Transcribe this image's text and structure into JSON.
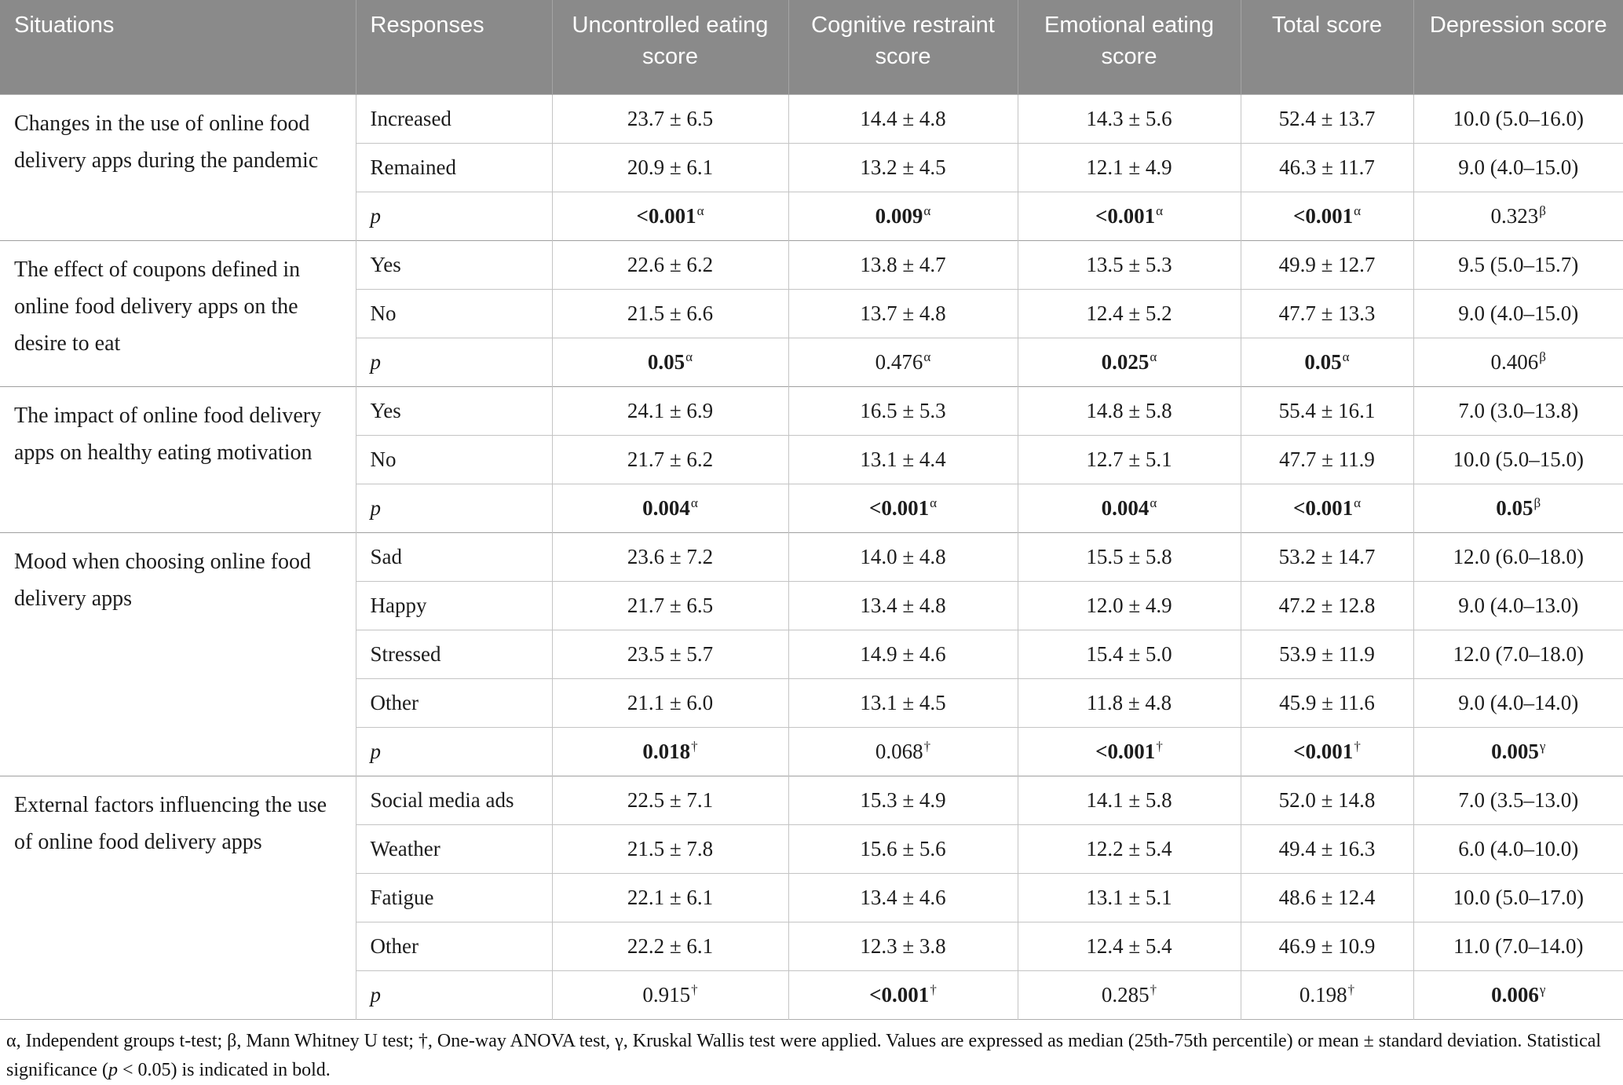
{
  "table": {
    "columns": [
      "Situations",
      "Responses",
      "Uncontrolled eating score",
      "Cognitive restraint score",
      "Emotional eating score",
      "Total score",
      "Depression score"
    ],
    "sections": [
      {
        "situation": "Changes in the use of online food delivery apps during the pandemic",
        "rows": [
          {
            "response": "Increased",
            "p_row": false,
            "cells": [
              "23.7 ± 6.5",
              "14.4 ± 4.8",
              "14.3 ± 5.6",
              "52.4 ± 13.7",
              "10.0 (5.0–16.0)"
            ]
          },
          {
            "response": "Remained",
            "p_row": false,
            "cells": [
              "20.9 ± 6.1",
              "13.2 ± 4.5",
              "12.1 ± 4.9",
              "46.3 ± 11.7",
              "9.0 (4.0–15.0)"
            ]
          },
          {
            "response": "p",
            "p_row": true,
            "cells": [
              {
                "v": "<0.001",
                "sup": "α",
                "b": true
              },
              {
                "v": "0.009",
                "sup": "α",
                "b": true
              },
              {
                "v": "<0.001",
                "sup": "α",
                "b": true
              },
              {
                "v": "<0.001",
                "sup": "α",
                "b": true
              },
              {
                "v": "0.323",
                "sup": "β",
                "b": false
              }
            ]
          }
        ]
      },
      {
        "situation": "The effect of coupons defined in online food delivery apps on the desire to eat",
        "rows": [
          {
            "response": "Yes",
            "p_row": false,
            "cells": [
              "22.6 ± 6.2",
              "13.8 ± 4.7",
              "13.5 ± 5.3",
              "49.9 ± 12.7",
              "9.5 (5.0–15.7)"
            ]
          },
          {
            "response": "No",
            "p_row": false,
            "cells": [
              "21.5 ± 6.6",
              "13.7 ± 4.8",
              "12.4 ± 5.2",
              "47.7 ± 13.3",
              "9.0 (4.0–15.0)"
            ]
          },
          {
            "response": "p",
            "p_row": true,
            "cells": [
              {
                "v": "0.05",
                "sup": "α",
                "b": true
              },
              {
                "v": "0.476",
                "sup": "α",
                "b": false
              },
              {
                "v": "0.025",
                "sup": "α",
                "b": true
              },
              {
                "v": "0.05",
                "sup": "α",
                "b": true
              },
              {
                "v": "0.406",
                "sup": "β",
                "b": false
              }
            ]
          }
        ]
      },
      {
        "situation": "The impact of online food delivery apps on healthy eating motivation",
        "rows": [
          {
            "response": "Yes",
            "p_row": false,
            "cells": [
              "24.1 ± 6.9",
              "16.5 ± 5.3",
              "14.8 ± 5.8",
              "55.4 ± 16.1",
              "7.0 (3.0–13.8)"
            ]
          },
          {
            "response": "No",
            "p_row": false,
            "cells": [
              "21.7 ± 6.2",
              "13.1 ± 4.4",
              "12.7 ± 5.1",
              "47.7 ± 11.9",
              "10.0 (5.0–15.0)"
            ]
          },
          {
            "response": "p",
            "p_row": true,
            "cells": [
              {
                "v": "0.004",
                "sup": "α",
                "b": true
              },
              {
                "v": "<0.001",
                "sup": "α",
                "b": true
              },
              {
                "v": "0.004",
                "sup": "α",
                "b": true
              },
              {
                "v": "<0.001",
                "sup": "α",
                "b": true
              },
              {
                "v": "0.05",
                "sup": "β",
                "b": true
              }
            ]
          }
        ]
      },
      {
        "situation": "Mood when choosing online food delivery apps",
        "rows": [
          {
            "response": "Sad",
            "p_row": false,
            "cells": [
              "23.6 ± 7.2",
              "14.0 ± 4.8",
              "15.5 ± 5.8",
              "53.2 ± 14.7",
              "12.0 (6.0–18.0)"
            ]
          },
          {
            "response": "Happy",
            "p_row": false,
            "cells": [
              "21.7 ± 6.5",
              "13.4 ± 4.8",
              "12.0 ± 4.9",
              "47.2 ± 12.8",
              "9.0 (4.0–13.0)"
            ]
          },
          {
            "response": "Stressed",
            "p_row": false,
            "cells": [
              "23.5 ± 5.7",
              "14.9 ± 4.6",
              "15.4 ± 5.0",
              "53.9 ± 11.9",
              "12.0 (7.0–18.0)"
            ]
          },
          {
            "response": "Other",
            "p_row": false,
            "cells": [
              "21.1 ± 6.0",
              "13.1 ± 4.5",
              "11.8 ± 4.8",
              "45.9 ± 11.6",
              "9.0 (4.0–14.0)"
            ]
          },
          {
            "response": "p",
            "p_row": true,
            "cells": [
              {
                "v": "0.018",
                "sup": "†",
                "b": true
              },
              {
                "v": "0.068",
                "sup": "†",
                "b": false
              },
              {
                "v": "<0.001",
                "sup": "†",
                "b": true
              },
              {
                "v": "<0.001",
                "sup": "†",
                "b": true
              },
              {
                "v": "0.005",
                "sup": "γ",
                "b": true
              }
            ]
          }
        ]
      },
      {
        "situation": "External factors influencing the use of online food delivery apps",
        "rows": [
          {
            "response": "Social media ads",
            "p_row": false,
            "cells": [
              "22.5 ± 7.1",
              "15.3 ± 4.9",
              "14.1 ± 5.8",
              "52.0 ± 14.8",
              "7.0 (3.5–13.0)"
            ]
          },
          {
            "response": "Weather",
            "p_row": false,
            "cells": [
              "21.5 ± 7.8",
              "15.6 ± 5.6",
              "12.2 ± 5.4",
              "49.4 ± 16.3",
              "6.0 (4.0–10.0)"
            ]
          },
          {
            "response": "Fatigue",
            "p_row": false,
            "cells": [
              "22.1 ± 6.1",
              "13.4 ± 4.6",
              "13.1 ± 5.1",
              "48.6 ± 12.4",
              "10.0 (5.0–17.0)"
            ]
          },
          {
            "response": "Other",
            "p_row": false,
            "cells": [
              "22.2 ± 6.1",
              "12.3 ± 3.8",
              "12.4 ± 5.4",
              "46.9 ± 10.9",
              "11.0 (7.0–14.0)"
            ]
          },
          {
            "response": "p",
            "p_row": true,
            "cells": [
              {
                "v": "0.915",
                "sup": "†",
                "b": false
              },
              {
                "v": "<0.001",
                "sup": "†",
                "b": true
              },
              {
                "v": "0.285",
                "sup": "†",
                "b": false
              },
              {
                "v": "0.198",
                "sup": "†",
                "b": false
              },
              {
                "v": "0.006",
                "sup": "γ",
                "b": true
              }
            ]
          }
        ]
      }
    ]
  },
  "footnote": {
    "segments": [
      {
        "text": "α, Independent groups t-test; β, Mann Whitney U test; †, One-way ANOVA test, γ, Kruskal Wallis test were applied. Values are expressed as median (25th-75th percentile) or mean ± standard deviation. Statistical significance (",
        "italic": false
      },
      {
        "text": "p",
        "italic": true
      },
      {
        "text": " < 0.05) is indicated in bold.",
        "italic": false
      }
    ]
  },
  "colors": {
    "header_bg": "#8a8a8a",
    "header_text": "#ffffff",
    "grid_line": "#c4c4c4",
    "section_line": "#9f9f9f"
  }
}
